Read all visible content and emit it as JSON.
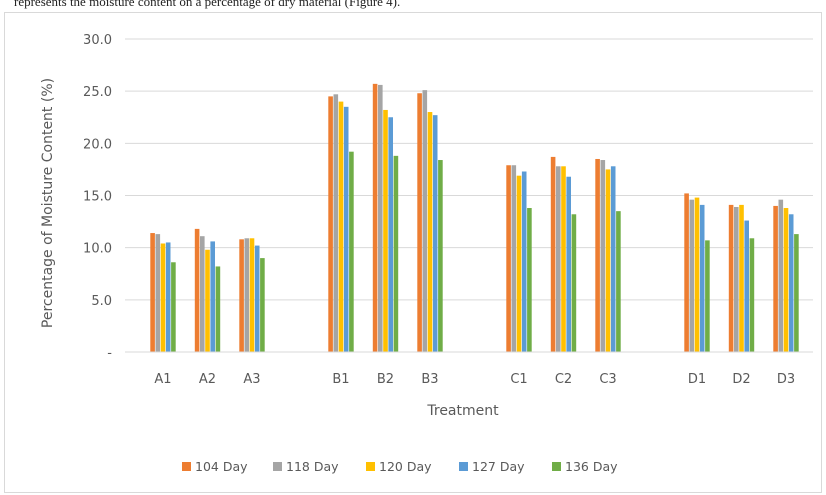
{
  "page": {
    "caption_fragment": "represents the moisture content on a percentage of dry material (Figure 4)."
  },
  "chart_data": {
    "type": "bar",
    "title": "",
    "xlabel": "Treatment",
    "ylabel": "Percentage of Moisture Content  (%)",
    "ylim": [
      0,
      30
    ],
    "yticks": [
      "-",
      "5.0",
      "10.0",
      "15.0",
      "20.0",
      "25.0",
      "30.0"
    ],
    "grid": true,
    "legend_position": "bottom",
    "categories": [
      "A1",
      "A2",
      "A3",
      "B1",
      "B2",
      "B3",
      "C1",
      "C2",
      "C3",
      "D1",
      "D2",
      "D3"
    ],
    "groups": [
      [
        "A1",
        "A2",
        "A3"
      ],
      [
        "B1",
        "B2",
        "B3"
      ],
      [
        "C1",
        "C2",
        "C3"
      ],
      [
        "D1",
        "D2",
        "D3"
      ]
    ],
    "series": [
      {
        "name": "104 Day",
        "color": "#ED7D31",
        "values": [
          11.4,
          11.8,
          10.8,
          24.5,
          25.7,
          24.8,
          17.9,
          18.7,
          18.5,
          15.2,
          14.1,
          14.0
        ]
      },
      {
        "name": "118 Day",
        "color": "#A5A5A5",
        "values": [
          11.3,
          11.1,
          10.9,
          24.7,
          25.6,
          25.1,
          17.9,
          17.8,
          18.4,
          14.6,
          13.9,
          14.6
        ]
      },
      {
        "name": "120 Day",
        "color": "#FFC000",
        "values": [
          10.4,
          9.8,
          10.9,
          24.0,
          23.2,
          23.0,
          16.9,
          17.8,
          17.5,
          14.8,
          14.1,
          13.8
        ]
      },
      {
        "name": "127 Day",
        "color": "#5B9BD5",
        "values": [
          10.5,
          10.6,
          10.2,
          23.5,
          22.5,
          22.7,
          17.3,
          16.8,
          17.8,
          14.1,
          12.6,
          13.2
        ]
      },
      {
        "name": "136 Day",
        "color": "#70AD47",
        "values": [
          8.6,
          8.2,
          9.0,
          19.2,
          18.8,
          18.4,
          13.8,
          13.2,
          13.5,
          10.7,
          10.9,
          11.3
        ]
      }
    ]
  }
}
